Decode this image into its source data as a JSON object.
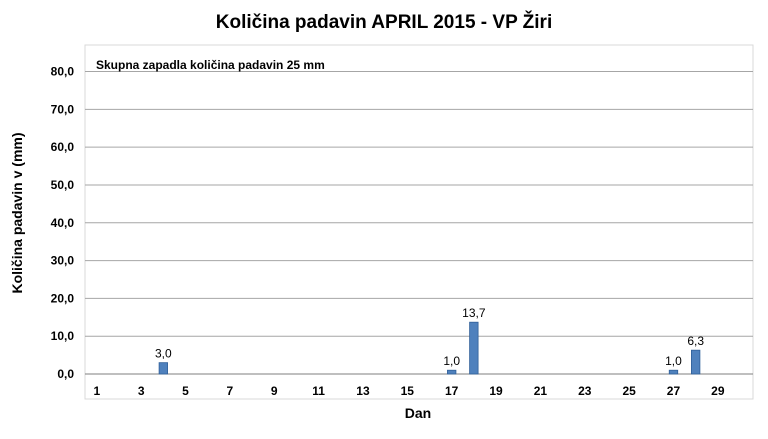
{
  "chart_data": {
    "type": "bar",
    "title": "Količina padavin  APRIL 2015 - VP Žiri",
    "xlabel": "Dan",
    "ylabel": "Količina padavin v  (mm)",
    "annotation": "Skupna zapadla količina padavin  25 mm",
    "ylim": [
      0,
      80
    ],
    "y_ticks": [
      "0,0",
      "10,0",
      "20,0",
      "30,0",
      "40,0",
      "50,0",
      "60,0",
      "70,0",
      "80,0"
    ],
    "x_tick_labels": [
      "1",
      "3",
      "5",
      "7",
      "9",
      "11",
      "13",
      "15",
      "17",
      "19",
      "21",
      "23",
      "25",
      "27",
      "29"
    ],
    "grid": true,
    "legend": "none",
    "bar_color": "#4f81bd",
    "categories": [
      1,
      2,
      3,
      4,
      5,
      6,
      7,
      8,
      9,
      10,
      11,
      12,
      13,
      14,
      15,
      16,
      17,
      18,
      19,
      20,
      21,
      22,
      23,
      24,
      25,
      26,
      27,
      28,
      29,
      30
    ],
    "values": [
      0,
      0,
      0,
      3.0,
      0,
      0,
      0,
      0,
      0,
      0,
      0,
      0,
      0,
      0,
      0,
      0,
      1.0,
      13.7,
      0,
      0,
      0,
      0,
      0,
      0,
      0,
      0,
      1.0,
      6.3,
      0,
      0
    ],
    "data_labels": {
      "4": "3,0",
      "17": "1,0",
      "18": "13,7",
      "27": "1,0",
      "28": "6,3"
    }
  }
}
